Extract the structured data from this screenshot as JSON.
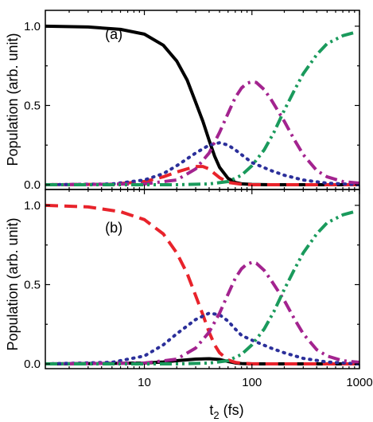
{
  "chart_data": [
    {
      "type": "line",
      "panel_label": "(a)",
      "xscale": "log",
      "xlim": [
        1.2,
        1000
      ],
      "ylim": [
        -0.03,
        1.1
      ],
      "yticks": [
        0.0,
        0.5,
        1.0
      ],
      "ytick_labels": [
        "0.0",
        "0.5",
        "1.0"
      ],
      "ylabel": "Population (arb. unit)",
      "series": [
        {
          "color": "#000000",
          "style": "solid",
          "x": [
            1.2,
            3,
            6,
            10,
            15,
            20,
            25,
            30,
            35,
            40,
            45,
            50,
            60,
            70,
            80,
            100,
            150,
            300,
            1000
          ],
          "y": [
            1.0,
            0.995,
            0.98,
            0.95,
            0.88,
            0.78,
            0.66,
            0.52,
            0.4,
            0.28,
            0.18,
            0.11,
            0.04,
            0.015,
            0.006,
            0.002,
            0.0,
            0.0,
            0.0
          ]
        },
        {
          "color": "#e8232b",
          "style": "dash",
          "x": [
            1.2,
            5,
            10,
            15,
            20,
            25,
            30,
            35,
            40,
            45,
            50,
            60,
            80,
            100,
            1000
          ],
          "y": [
            0.0,
            0.003,
            0.02,
            0.05,
            0.08,
            0.1,
            0.115,
            0.115,
            0.1,
            0.07,
            0.045,
            0.015,
            0.003,
            0.0,
            0.0
          ]
        },
        {
          "color": "#2b2f9a",
          "style": "dot",
          "x": [
            1.2,
            5,
            10,
            15,
            20,
            30,
            40,
            50,
            60,
            70,
            80,
            100,
            150,
            200,
            300,
            500,
            1000
          ],
          "y": [
            0.0,
            0.005,
            0.03,
            0.07,
            0.12,
            0.2,
            0.25,
            0.265,
            0.25,
            0.22,
            0.19,
            0.14,
            0.09,
            0.06,
            0.03,
            0.01,
            0.0
          ]
        },
        {
          "color": "#a3238f",
          "style": "dashdot",
          "x": [
            1.2,
            10,
            20,
            30,
            40,
            50,
            60,
            70,
            80,
            90,
            100,
            110,
            130,
            150,
            200,
            250,
            300,
            400,
            500,
            700,
            1000
          ],
          "y": [
            0.0,
            0.005,
            0.03,
            0.1,
            0.2,
            0.33,
            0.45,
            0.55,
            0.61,
            0.64,
            0.65,
            0.645,
            0.6,
            0.54,
            0.4,
            0.28,
            0.19,
            0.09,
            0.05,
            0.02,
            0.01
          ]
        },
        {
          "color": "#1a9a5c",
          "style": "dashdotdot",
          "x": [
            1.2,
            20,
            40,
            60,
            80,
            100,
            130,
            160,
            200,
            250,
            300,
            400,
            500,
            700,
            900
          ],
          "y": [
            0.0,
            0.0,
            0.005,
            0.02,
            0.06,
            0.12,
            0.22,
            0.33,
            0.47,
            0.6,
            0.7,
            0.82,
            0.89,
            0.94,
            0.96
          ]
        }
      ]
    },
    {
      "type": "line",
      "panel_label": "(b)",
      "xscale": "log",
      "xlim": [
        1.2,
        1000
      ],
      "ylim": [
        -0.03,
        1.1
      ],
      "yticks": [
        0.0,
        0.5,
        1.0
      ],
      "ytick_labels": [
        "0.0",
        "0.5",
        "1.0"
      ],
      "ylabel": "Population (arb. unit)",
      "xticks": [
        10,
        100,
        1000
      ],
      "xtick_labels": [
        "10",
        "100",
        "1000"
      ],
      "xlabel_main": "t",
      "xlabel_sub": "2",
      "xlabel_rest": " (fs)",
      "series": [
        {
          "color": "#000000",
          "style": "solid",
          "x": [
            1.2,
            10,
            15,
            20,
            30,
            40,
            50,
            60,
            70,
            80,
            100,
            1000
          ],
          "y": [
            0.0,
            0.005,
            0.012,
            0.02,
            0.03,
            0.033,
            0.028,
            0.015,
            0.006,
            0.002,
            0.0,
            0.0
          ]
        },
        {
          "color": "#e8232b",
          "style": "dash",
          "x": [
            1.2,
            3,
            6,
            10,
            15,
            20,
            25,
            30,
            35,
            40,
            45,
            50,
            60,
            70,
            80,
            100,
            150,
            1000
          ],
          "y": [
            1.0,
            0.99,
            0.96,
            0.91,
            0.82,
            0.7,
            0.57,
            0.43,
            0.31,
            0.2,
            0.12,
            0.07,
            0.025,
            0.01,
            0.004,
            0.001,
            0.0,
            0.0
          ]
        },
        {
          "color": "#2b2f9a",
          "style": "dot",
          "x": [
            1.2,
            5,
            10,
            15,
            20,
            30,
            40,
            50,
            60,
            70,
            80,
            100,
            150,
            200,
            300,
            500,
            1000
          ],
          "y": [
            0.0,
            0.01,
            0.05,
            0.12,
            0.19,
            0.28,
            0.32,
            0.31,
            0.27,
            0.22,
            0.18,
            0.15,
            0.1,
            0.07,
            0.035,
            0.012,
            0.0
          ]
        },
        {
          "color": "#a3238f",
          "style": "dashdot",
          "x": [
            1.2,
            10,
            20,
            30,
            40,
            50,
            60,
            70,
            80,
            90,
            100,
            110,
            130,
            150,
            200,
            250,
            300,
            400,
            500,
            700,
            1000
          ],
          "y": [
            0.0,
            0.005,
            0.03,
            0.1,
            0.2,
            0.32,
            0.44,
            0.54,
            0.6,
            0.63,
            0.64,
            0.635,
            0.59,
            0.53,
            0.4,
            0.28,
            0.19,
            0.09,
            0.05,
            0.02,
            0.01
          ]
        },
        {
          "color": "#1a9a5c",
          "style": "dashdotdot",
          "x": [
            1.2,
            20,
            40,
            60,
            80,
            100,
            130,
            160,
            200,
            250,
            300,
            400,
            500,
            700,
            900
          ],
          "y": [
            0.0,
            0.0,
            0.005,
            0.02,
            0.06,
            0.12,
            0.22,
            0.33,
            0.47,
            0.6,
            0.7,
            0.82,
            0.89,
            0.94,
            0.96
          ]
        }
      ]
    }
  ]
}
